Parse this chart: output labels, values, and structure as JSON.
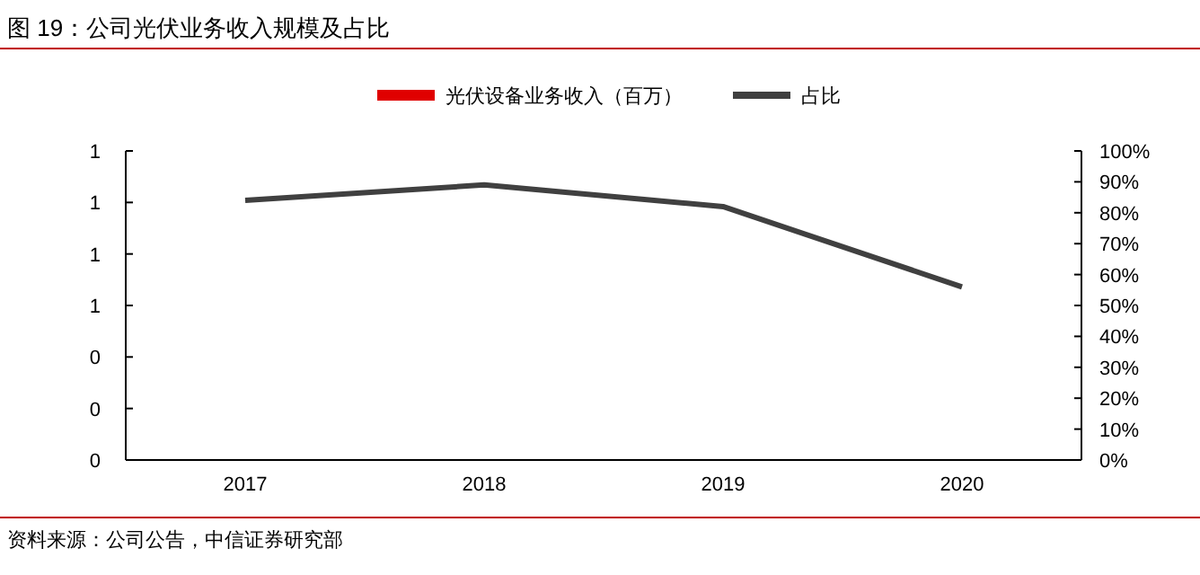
{
  "chart_data": {
    "type": "bar",
    "title": "图 19：公司光伏业务收入规模及占比",
    "categories": [
      "2017",
      "2018",
      "2019",
      "2020"
    ],
    "series": [
      {
        "name": "光伏设备业务收入（百万）",
        "color": "#e00000",
        "values": [
          null,
          null,
          null,
          null
        ]
      },
      {
        "name": "占比",
        "type": "line",
        "axis": "y2",
        "color": "#404040",
        "values": [
          84,
          89,
          82,
          56
        ]
      }
    ],
    "ylim": [
      0,
      1.2
    ],
    "yticks": [
      {
        "value": 0,
        "label": "0"
      },
      {
        "value": 0.2,
        "label": "0"
      },
      {
        "value": 0.4,
        "label": "0"
      },
      {
        "value": 0.6,
        "label": "1"
      },
      {
        "value": 0.8,
        "label": "1"
      },
      {
        "value": 1.0,
        "label": "1"
      },
      {
        "value": 1.2,
        "label": "1"
      }
    ],
    "y2lim": [
      0,
      100
    ],
    "y2ticks": [
      {
        "value": 0,
        "label": "0%"
      },
      {
        "value": 10,
        "label": "10%"
      },
      {
        "value": 20,
        "label": "20%"
      },
      {
        "value": 30,
        "label": "30%"
      },
      {
        "value": 40,
        "label": "40%"
      },
      {
        "value": 50,
        "label": "50%"
      },
      {
        "value": 60,
        "label": "60%"
      },
      {
        "value": 70,
        "label": "70%"
      },
      {
        "value": 80,
        "label": "80%"
      },
      {
        "value": 90,
        "label": "90%"
      },
      {
        "value": 100,
        "label": "100%"
      }
    ],
    "legend": "top",
    "grid": false,
    "annotations": [
      "资料来源：公司公告，中信证券研究部"
    ]
  }
}
